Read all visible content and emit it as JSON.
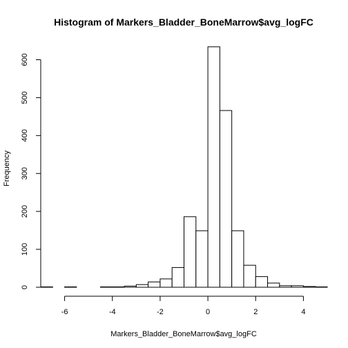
{
  "chart_data": {
    "type": "bar",
    "title": "Histogram of Markers_Bladder_BoneMarrow$avg_logFC",
    "xlabel": "Markers_Bladder_BoneMarrow$avg_logFC",
    "ylabel": "Frequency",
    "xlim": [
      -7,
      5
    ],
    "ylim": [
      0,
      630
    ],
    "x_ticks": [
      -6,
      -4,
      -2,
      0,
      2,
      4
    ],
    "y_ticks": [
      0,
      100,
      200,
      300,
      400,
      500,
      600
    ],
    "bin_edges": [
      -7,
      -6.5,
      -6,
      -5.5,
      -5,
      -4.5,
      -4,
      -3.5,
      -3,
      -2.5,
      -2,
      -1.5,
      -1,
      -0.5,
      0,
      0.5,
      1,
      1.5,
      2,
      2.5,
      3,
      3.5,
      4,
      4.5,
      5
    ],
    "values": [
      1,
      0,
      1,
      0,
      0,
      1,
      1,
      3,
      7,
      14,
      22,
      52,
      186,
      149,
      634,
      466,
      149,
      58,
      28,
      11,
      4,
      4,
      2,
      1
    ],
    "colors": {
      "bar_fill": "#ffffff",
      "bar_stroke": "#000000"
    }
  }
}
